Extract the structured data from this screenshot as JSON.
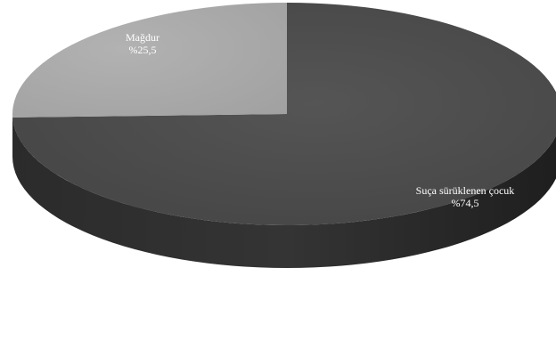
{
  "chart_data": {
    "type": "pie",
    "style": "3d",
    "slices": [
      {
        "label": "Suça sürüklenen çocuk",
        "value": 74.5,
        "value_text": "%74,5",
        "color": "#4b4b4b"
      },
      {
        "label": "Mağdur",
        "value": 25.5,
        "value_text": "%25,5",
        "color": "#a9a9a9"
      }
    ],
    "legend": "none",
    "grid": false
  }
}
